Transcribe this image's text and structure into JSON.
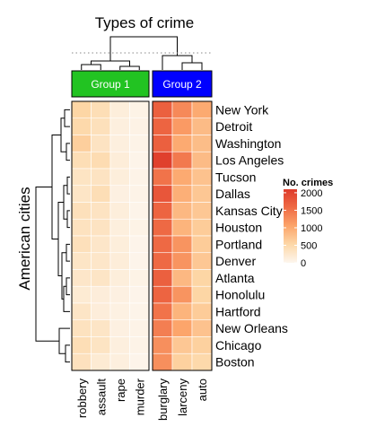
{
  "chart_data": {
    "type": "heatmap",
    "title": "Types of crime",
    "ylabel": "American cities",
    "legend": {
      "title": "No. crimes",
      "ticks": [
        2000,
        1500,
        1000,
        500,
        0
      ],
      "range": [
        0,
        2100
      ],
      "placement": "right",
      "colors": [
        "#fdf6ee",
        "#fdd8a8",
        "#fca56b",
        "#ef6b45",
        "#de3b2b"
      ]
    },
    "groups": [
      {
        "label": "Group 1",
        "color": "#22c322",
        "columns": [
          "robbery",
          "assault",
          "rape",
          "murder"
        ]
      },
      {
        "label": "Group 2",
        "color": "#0000ff",
        "columns": [
          "burglary",
          "larceny",
          "auto"
        ]
      }
    ],
    "columns": [
      "robbery",
      "assault",
      "rape",
      "murder",
      "burglary",
      "larceny",
      "auto"
    ],
    "rows": [
      "New York",
      "Detroit",
      "Washington",
      "Los Angeles",
      "Tucson",
      "Dallas",
      "Kansas City",
      "Houston",
      "Portland",
      "Denver",
      "Atlanta",
      "Honolulu",
      "Hartford",
      "New Orleans",
      "Chicago",
      "Boston"
    ],
    "values": [
      [
        550,
        420,
        140,
        60,
        1700,
        1300,
        1000
      ],
      [
        500,
        380,
        120,
        70,
        1650,
        1150,
        820
      ],
      [
        620,
        330,
        120,
        50,
        1700,
        1000,
        800
      ],
      [
        420,
        450,
        160,
        40,
        2050,
        1450,
        820
      ],
      [
        320,
        330,
        140,
        50,
        1500,
        1000,
        750
      ],
      [
        300,
        420,
        100,
        50,
        1800,
        950,
        700
      ],
      [
        380,
        330,
        140,
        40,
        1650,
        850,
        700
      ],
      [
        350,
        330,
        130,
        60,
        1600,
        900,
        650
      ],
      [
        380,
        280,
        140,
        30,
        1600,
        1200,
        650
      ],
      [
        300,
        280,
        160,
        30,
        1600,
        1200,
        700
      ],
      [
        280,
        300,
        140,
        60,
        1700,
        850,
        550
      ],
      [
        200,
        150,
        100,
        30,
        1650,
        1200,
        550
      ],
      [
        300,
        150,
        90,
        40,
        1500,
        900,
        650
      ],
      [
        350,
        300,
        100,
        50,
        1400,
        1050,
        750
      ],
      [
        420,
        320,
        120,
        50,
        1250,
        700,
        600
      ],
      [
        360,
        200,
        120,
        30,
        1250,
        600,
        500
      ]
    ]
  }
}
